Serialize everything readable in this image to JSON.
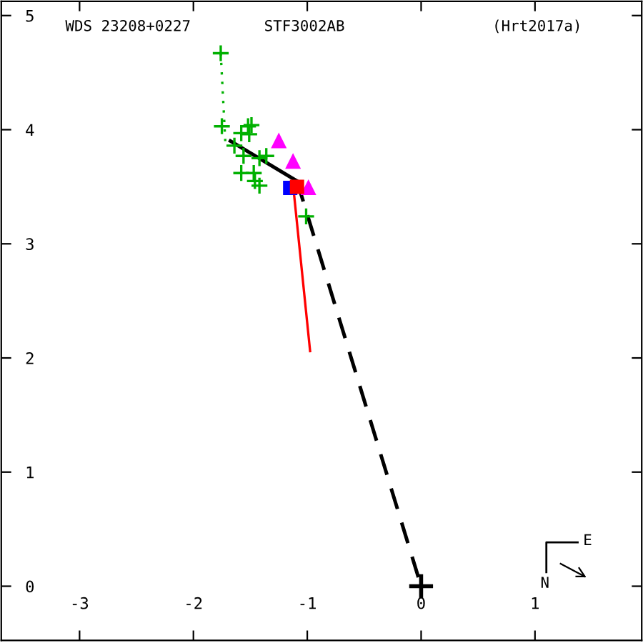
{
  "chart_data": {
    "type": "scatter",
    "title": "STF3002AB",
    "annotations": [
      "WDS 23208+0227",
      "(Hrt2017a)",
      "N",
      "E"
    ],
    "xlim": [
      -3.6875,
      1.9375
    ],
    "ylim": [
      -0.475,
      5.125
    ],
    "xticks": [
      -3,
      -2,
      -1,
      0,
      1
    ],
    "yticks": [
      0,
      1,
      2,
      3,
      4,
      5
    ],
    "grid": false,
    "series": [
      {
        "marker": "cross",
        "color": "#00b000",
        "x": [
          -1.76,
          -1.75,
          -1.52,
          -1.49,
          -1.58,
          -1.51,
          -1.64,
          -1.56,
          -1.42,
          -1.36,
          -1.58,
          -1.47,
          -1.46,
          -1.42,
          -1.01
        ],
        "values": [
          4.67,
          4.03,
          4.03,
          4.04,
          3.97,
          3.96,
          3.86,
          3.77,
          3.75,
          3.77,
          3.62,
          3.62,
          3.55,
          3.51,
          3.24
        ]
      },
      {
        "type": "line",
        "marker": "none",
        "line_style": "dotted",
        "color": "#00b000",
        "x": [
          -1.76,
          -1.72
        ],
        "values": [
          4.67,
          3.9
        ]
      },
      {
        "type": "line",
        "marker": "none",
        "line_style": "solid",
        "color": "#000000",
        "x": [
          -1.675,
          -1.09
        ],
        "values": [
          3.9,
          3.55
        ]
      },
      {
        "type": "line",
        "marker": "none",
        "line_style": "dashed",
        "color": "#000000",
        "x": [
          -1.09,
          0
        ],
        "values": [
          3.55,
          0
        ]
      },
      {
        "type": "line",
        "marker": "none",
        "line_style": "solid",
        "color": "#ff0000",
        "x": [
          -1.125,
          -0.975
        ],
        "values": [
          3.52,
          2.06
        ]
      },
      {
        "marker": "triangle",
        "color": "#ff00ff",
        "x": [
          -1.25,
          -1.125,
          -0.99
        ],
        "values": [
          3.9,
          3.72,
          3.49
        ]
      },
      {
        "marker": "square",
        "color": "#0000ff",
        "x": [
          -1.15
        ],
        "values": [
          3.49
        ]
      },
      {
        "marker": "square",
        "color": "#ff0000",
        "x": [
          -1.09
        ],
        "values": [
          3.5
        ]
      },
      {
        "marker": "cross",
        "color": "#000000",
        "x": [
          0
        ],
        "values": [
          0
        ]
      }
    ]
  }
}
